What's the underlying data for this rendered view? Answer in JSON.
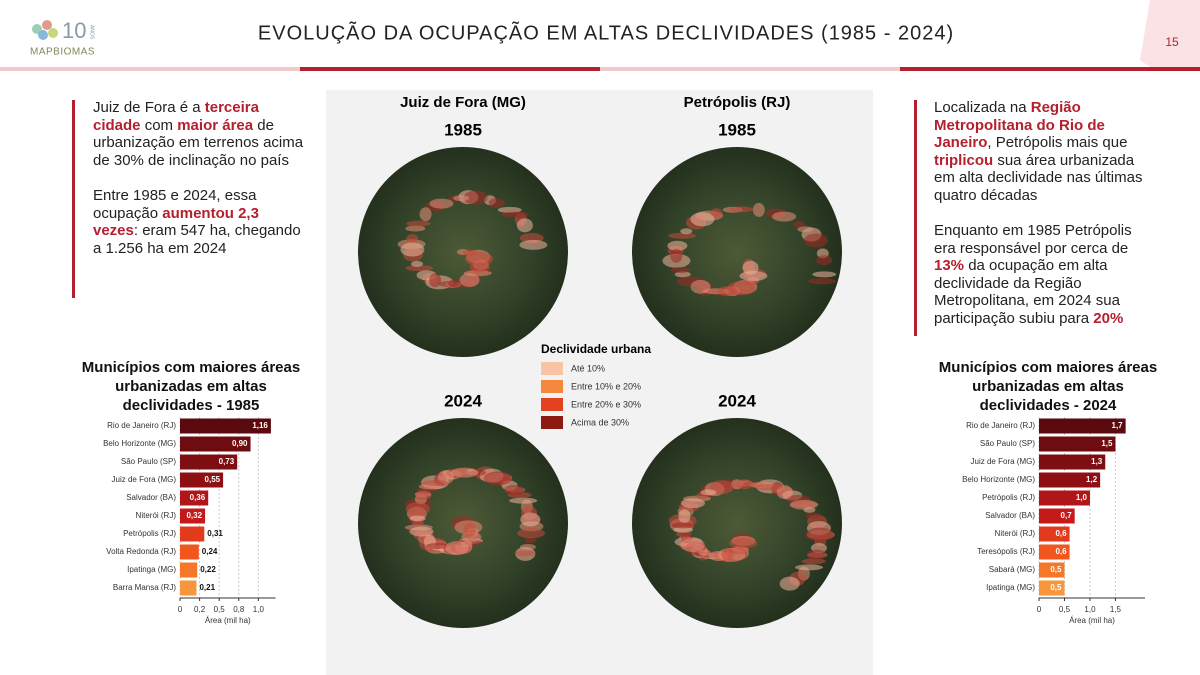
{
  "header": {
    "title": "EVOLUÇÃO DA OCUPAÇÃO EM ALTAS DECLIVIDADES (1985 - 2024)",
    "page_number": "15",
    "logo_number": "10",
    "logo_sub": "ANOS",
    "logo_text": "MAPBIOMAS"
  },
  "left_text": {
    "highlight_color": "#b5202e",
    "paragraphs": [
      [
        {
          "text": "Juiz de Fora é a ",
          "highlight": false
        },
        {
          "text": "terceira cidade",
          "highlight": true
        },
        {
          "text": " com ",
          "highlight": false
        },
        {
          "text": "maior área",
          "highlight": true
        },
        {
          "text": " de urbanização em terrenos acima de 30% de inclinação no país",
          "highlight": false
        }
      ],
      [
        {
          "text": "Entre 1985 e 2024, essa ocupação ",
          "highlight": false
        },
        {
          "text": "aumentou 2,3 vezes",
          "highlight": true
        },
        {
          "text": ": eram 547 ha, chegando a 1.256 ha em 2024",
          "highlight": false
        }
      ]
    ]
  },
  "right_text": {
    "highlight_color": "#b5202e",
    "paragraphs": [
      [
        {
          "text": "Localizada na ",
          "highlight": false
        },
        {
          "text": "Região Metropolitana do Rio de Janeiro",
          "highlight": true
        },
        {
          "text": ", Petrópolis mais que ",
          "highlight": false
        },
        {
          "text": "triplicou",
          "highlight": true
        },
        {
          "text": " sua área urbanizada em alta declividade nas últimas quatro décadas",
          "highlight": false
        }
      ],
      [
        {
          "text": "Enquanto em 1985 Petrópolis era responsável por cerca de ",
          "highlight": false
        },
        {
          "text": "13%",
          "highlight": true
        },
        {
          "text": " da ocupação em alta declividade da Região Metropolitana, em 2024 sua participação subiu para ",
          "highlight": false
        },
        {
          "text": "20%",
          "highlight": true
        }
      ]
    ]
  },
  "maps": {
    "city_left": "Juiz de Fora (MG)",
    "city_right": "Petrópolis (RJ)",
    "year_top_left": "1985",
    "year_top_right": "1985",
    "year_bottom_left": "2024",
    "year_bottom_right": "2024"
  },
  "legend": {
    "title": "Declividade urbana",
    "items": [
      {
        "label": "Até 10%",
        "color": "#f9c3a6"
      },
      {
        "label": "Entre 10% e 20%",
        "color": "#f5873e"
      },
      {
        "label": "Entre 20% e 30%",
        "color": "#e2421f"
      },
      {
        "label": "Acima de 30%",
        "color": "#8c1a12"
      }
    ]
  },
  "chart_data": [
    {
      "type": "bar",
      "orientation": "horizontal",
      "title": "Municípios com maiores áreas urbanizadas em altas declividades - 1985",
      "categories": [
        "Rio de Janeiro (RJ)",
        "Belo Horizonte (MG)",
        "São Paulo (SP)",
        "Juiz de Fora (MG)",
        "Salvador (BA)",
        "Niterói (RJ)",
        "Petrópolis (RJ)",
        "Volta Redonda (RJ)",
        "Ipatinga (MG)",
        "Barra Mansa (RJ)"
      ],
      "values": [
        1.16,
        0.9,
        0.73,
        0.55,
        0.36,
        0.32,
        0.31,
        0.24,
        0.22,
        0.21
      ],
      "value_labels": [
        "1,16",
        "0,90",
        "0,73",
        "0,55",
        "0,36",
        "0,32",
        "0,31",
        "0,24",
        "0,22",
        "0,21"
      ],
      "colors": [
        "#5a0a0e",
        "#6e0c10",
        "#7d0e12",
        "#8f1014",
        "#b01518",
        "#c41a1a",
        "#e23a1c",
        "#f0561e",
        "#f5782a",
        "#f7963a"
      ],
      "xlim": [
        0,
        1.22
      ],
      "xticks": [
        0,
        {
          "value": 0.25,
          "label": "0,2"
        },
        {
          "value": 0.5,
          "label": "0,5"
        },
        {
          "value": 0.75,
          "label": "0,8"
        },
        {
          "value": 1.0,
          "label": "1,0"
        }
      ],
      "xlabel": "Área (mil ha)",
      "grid": true
    },
    {
      "type": "bar",
      "orientation": "horizontal",
      "title": "Municípios com maiores áreas urbanizadas em altas declividades - 2024",
      "categories": [
        "Rio de Janeiro (RJ)",
        "São Paulo (SP)",
        "Juiz de Fora (MG)",
        "Belo Horizonte (MG)",
        "Petrópolis (RJ)",
        "Salvador (BA)",
        "Niterói (RJ)",
        "Teresópolis (RJ)",
        "Sabará (MG)",
        "Ipatinga (MG)"
      ],
      "values": [
        1.7,
        1.5,
        1.3,
        1.2,
        1.0,
        0.7,
        0.6,
        0.6,
        0.5,
        0.5
      ],
      "value_labels": [
        "1,7",
        "1,5",
        "1,3",
        "1,2",
        "1,0",
        "0,7",
        "0,6",
        "0,6",
        "0,5",
        "0,5"
      ],
      "colors": [
        "#5a0a0e",
        "#6e0c10",
        "#7d0e12",
        "#8f1014",
        "#b01518",
        "#c41a1a",
        "#e23a1c",
        "#f0561e",
        "#f5782a",
        "#f7963a"
      ],
      "xlim": [
        0,
        2.08
      ],
      "xticks": [
        0,
        {
          "value": 0.5,
          "label": "0,5"
        },
        {
          "value": 1.0,
          "label": "1,0"
        },
        {
          "value": 1.5,
          "label": "1,5"
        }
      ],
      "xlabel": "Área (mil ha)",
      "grid": true
    }
  ]
}
